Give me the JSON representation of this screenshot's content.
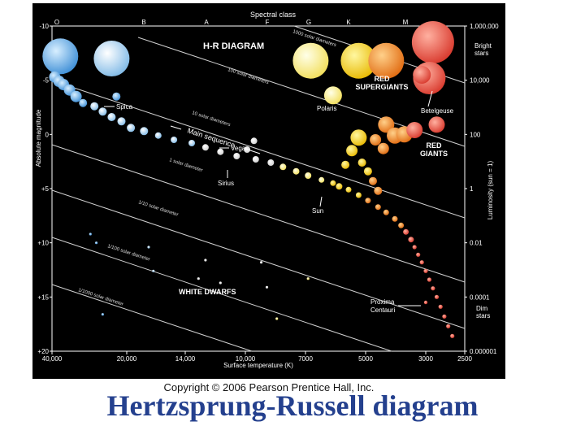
{
  "slide_title": "Hertzsprung-Russell diagram",
  "copyright": "Copyright © 2006 Pearson Prentice Hall, Inc.",
  "colors": {
    "background": "#000000",
    "title": "#24408e",
    "O": "#5aa6e6",
    "B": "#a8d4f2",
    "A": "#ffffff",
    "F": "#fff8a8",
    "G": "#ffe000",
    "K": "#ff9a3a",
    "M": "#ff5a4a"
  },
  "chart_data": {
    "type": "scatter",
    "title": "H-R DIAGRAM",
    "x_top_label": "Spectral class",
    "spectral_classes": [
      "O",
      "B",
      "A",
      "F",
      "G",
      "K",
      "M"
    ],
    "xlabel": "Surface temperature (K)",
    "x_ticks": [
      "40,000",
      "20,000",
      "14,000",
      "10,000",
      "7000",
      "5000",
      "3000",
      "2500"
    ],
    "ylabel_left": "Absolute magnitude",
    "y_left_ticks": [
      "-10",
      "-5",
      "0",
      "+5",
      "+10",
      "+15",
      "+20"
    ],
    "ylabel_right": "Luminosity (sun = 1)",
    "y_right_ticks": [
      "1,000,000",
      "10,000",
      "100",
      "1",
      "0.01",
      "0.0001",
      "0.000001"
    ],
    "ylim_magnitude": [
      20,
      -10
    ],
    "xlim_temperature_K": [
      40000,
      2500
    ],
    "x_scale": "log",
    "region_labels": [
      "RED SUPERGIANTS",
      "RED GIANTS",
      "WHITE DWARFS",
      "Main sequence",
      "Bright stars",
      "Dim stars"
    ],
    "diameter_labels": [
      "1000 solar diameters",
      "100 solar diameters",
      "10 solar diameters",
      "1 solar diameter",
      "1/10 solar diameter",
      "1/100 solar diameter",
      "1/1000 solar diameter"
    ],
    "named_stars": [
      {
        "name": "Spica",
        "temperature": 22000,
        "magnitude": -3.5
      },
      {
        "name": "Polaris",
        "temperature": 6000,
        "magnitude": -3.6
      },
      {
        "name": "Betelgeuse",
        "temperature": 3100,
        "magnitude": -5.5
      },
      {
        "name": "Vega",
        "temperature": 9500,
        "magnitude": 0.6
      },
      {
        "name": "Sirius",
        "temperature": 9900,
        "magnitude": 1.4
      },
      {
        "name": "Sun",
        "temperature": 5800,
        "magnitude": 4.8
      },
      {
        "name": "Proxima Centauri",
        "temperature": 3000,
        "magnitude": 15.5
      }
    ],
    "series": [
      {
        "name": "Supergiants",
        "points": [
          {
            "temperature": 37000,
            "magnitude": -7.2,
            "class": "O"
          },
          {
            "temperature": 23000,
            "magnitude": -7.0,
            "class": "B"
          },
          {
            "temperature": 6800,
            "magnitude": -6.8,
            "class": "F"
          },
          {
            "temperature": 5200,
            "magnitude": -6.8,
            "class": "G"
          },
          {
            "temperature": 4200,
            "magnitude": -6.8,
            "class": "K"
          },
          {
            "temperature": 2900,
            "magnitude": -8.5,
            "class": "M"
          },
          {
            "temperature": 2950,
            "magnitude": -5.2,
            "class": "M"
          }
        ]
      },
      {
        "name": "Giants",
        "points": [
          {
            "temperature": 4200,
            "magnitude": -0.9,
            "class": "K"
          },
          {
            "temperature": 3900,
            "magnitude": 0.1,
            "class": "K"
          },
          {
            "temperature": 3600,
            "magnitude": 0.0,
            "class": "K"
          },
          {
            "temperature": 3300,
            "magnitude": -0.4,
            "class": "M"
          },
          {
            "temperature": 2850,
            "magnitude": -0.9,
            "class": "M"
          },
          {
            "temperature": 4600,
            "magnitude": 0.5,
            "class": "K"
          },
          {
            "temperature": 4300,
            "magnitude": 1.3,
            "class": "K"
          },
          {
            "temperature": 5200,
            "magnitude": 0.3,
            "class": "G"
          },
          {
            "temperature": 5400,
            "magnitude": 1.5,
            "class": "G"
          },
          {
            "temperature": 5100,
            "magnitude": 2.6,
            "class": "G"
          },
          {
            "temperature": 4900,
            "magnitude": 3.4,
            "class": "G"
          },
          {
            "temperature": 5600,
            "magnitude": 2.8,
            "class": "G"
          },
          {
            "temperature": 4700,
            "magnitude": 4.3,
            "class": "K"
          },
          {
            "temperature": 4500,
            "magnitude": 5.2,
            "class": "K"
          }
        ]
      },
      {
        "name": "Main sequence",
        "points": [
          {
            "temperature": 39000,
            "magnitude": -5.3,
            "class": "O"
          },
          {
            "temperature": 37500,
            "magnitude": -4.9,
            "class": "O"
          },
          {
            "temperature": 36000,
            "magnitude": -4.6,
            "class": "O"
          },
          {
            "temperature": 34000,
            "magnitude": -4.1,
            "class": "O"
          },
          {
            "temperature": 32000,
            "magnitude": -3.5,
            "class": "O"
          },
          {
            "temperature": 30000,
            "magnitude": -2.9,
            "class": "O"
          },
          {
            "temperature": 27000,
            "magnitude": -2.6,
            "class": "B"
          },
          {
            "temperature": 25000,
            "magnitude": -2.1,
            "class": "B"
          },
          {
            "temperature": 23000,
            "magnitude": -1.6,
            "class": "B"
          },
          {
            "temperature": 21000,
            "magnitude": -1.2,
            "class": "B"
          },
          {
            "temperature": 19500,
            "magnitude": -0.6,
            "class": "B"
          },
          {
            "temperature": 18000,
            "magnitude": -0.3,
            "class": "B"
          },
          {
            "temperature": 16500,
            "magnitude": 0.1,
            "class": "B"
          },
          {
            "temperature": 15000,
            "magnitude": 0.5,
            "class": "B"
          },
          {
            "temperature": 13500,
            "magnitude": 0.8,
            "class": "B"
          },
          {
            "temperature": 12500,
            "magnitude": 1.2,
            "class": "A"
          },
          {
            "temperature": 11500,
            "magnitude": 1.6,
            "class": "A"
          },
          {
            "temperature": 10500,
            "magnitude": 2.0,
            "class": "A"
          },
          {
            "temperature": 9400,
            "magnitude": 2.3,
            "class": "A"
          },
          {
            "temperature": 8600,
            "magnitude": 2.6,
            "class": "A"
          },
          {
            "temperature": 8000,
            "magnitude": 3.0,
            "class": "F"
          },
          {
            "temperature": 7400,
            "magnitude": 3.4,
            "class": "F"
          },
          {
            "temperature": 6900,
            "magnitude": 3.8,
            "class": "F"
          },
          {
            "temperature": 6400,
            "magnitude": 4.2,
            "class": "F"
          },
          {
            "temperature": 6000,
            "magnitude": 4.5,
            "class": "G"
          },
          {
            "temperature": 5500,
            "magnitude": 5.1,
            "class": "G"
          },
          {
            "temperature": 5200,
            "magnitude": 5.6,
            "class": "G"
          },
          {
            "temperature": 4900,
            "magnitude": 6.1,
            "class": "K"
          },
          {
            "temperature": 4500,
            "magnitude": 6.7,
            "class": "K"
          },
          {
            "temperature": 4200,
            "magnitude": 7.2,
            "class": "K"
          },
          {
            "temperature": 3900,
            "magnitude": 7.8,
            "class": "K"
          },
          {
            "temperature": 3700,
            "magnitude": 8.4,
            "class": "K"
          },
          {
            "temperature": 3550,
            "magnitude": 9.0,
            "class": "M"
          },
          {
            "temperature": 3400,
            "magnitude": 9.7,
            "class": "M"
          },
          {
            "temperature": 3300,
            "magnitude": 10.4,
            "class": "M"
          },
          {
            "temperature": 3200,
            "magnitude": 11.1,
            "class": "M"
          },
          {
            "temperature": 3100,
            "magnitude": 11.8,
            "class": "M"
          },
          {
            "temperature": 3000,
            "magnitude": 12.6,
            "class": "M"
          },
          {
            "temperature": 2950,
            "magnitude": 13.4,
            "class": "M"
          },
          {
            "temperature": 2900,
            "magnitude": 14.2,
            "class": "M"
          },
          {
            "temperature": 2850,
            "magnitude": 15.0,
            "class": "M"
          },
          {
            "temperature": 2800,
            "magnitude": 15.9,
            "class": "M"
          },
          {
            "temperature": 2750,
            "magnitude": 16.8,
            "class": "M"
          },
          {
            "temperature": 2700,
            "magnitude": 17.7,
            "class": "M"
          },
          {
            "temperature": 2650,
            "magnitude": 18.6,
            "class": "M"
          }
        ]
      },
      {
        "name": "White dwarfs",
        "points": [
          {
            "temperature": 28000,
            "magnitude": 9.2,
            "class": "O"
          },
          {
            "temperature": 26500,
            "magnitude": 10.0,
            "class": "O"
          },
          {
            "temperature": 17500,
            "magnitude": 10.4,
            "class": "B"
          },
          {
            "temperature": 17000,
            "magnitude": 12.6,
            "class": "B"
          },
          {
            "temperature": 12500,
            "magnitude": 11.6,
            "class": "A"
          },
          {
            "temperature": 13000,
            "magnitude": 13.3,
            "class": "A"
          },
          {
            "temperature": 11500,
            "magnitude": 13.7,
            "class": "A"
          },
          {
            "temperature": 9100,
            "magnitude": 11.8,
            "class": "A"
          },
          {
            "temperature": 6900,
            "magnitude": 13.3,
            "class": "F"
          },
          {
            "temperature": 8800,
            "magnitude": 14.1,
            "class": "A"
          },
          {
            "temperature": 8300,
            "magnitude": 17.0,
            "class": "F"
          },
          {
            "temperature": 25000,
            "magnitude": 16.6,
            "class": "O"
          }
        ]
      }
    ]
  }
}
